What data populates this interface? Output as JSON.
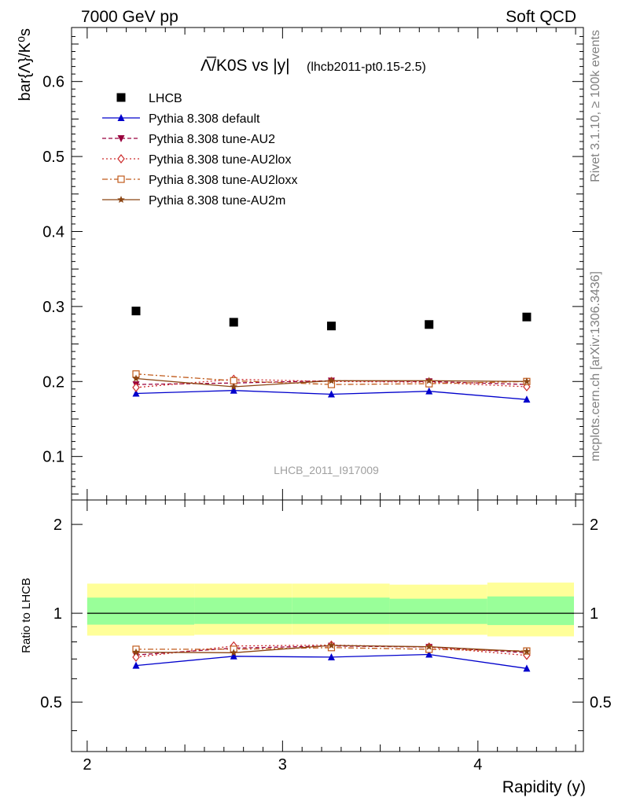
{
  "header": {
    "left": "7000 GeV pp",
    "right": "Soft QCD"
  },
  "side_labels": {
    "top": "Rivet 3.1.10, ≥ 100k events",
    "bottom": "mcplots.cern.ch [arXiv:1306.3436]"
  },
  "watermark": "LHCB_2011_I917009",
  "chart_data": [
    {
      "type": "scatter",
      "title_main": "Λ̅/K0S vs |y|",
      "title_sub": "(lhcb2011-pt0.15-2.5)",
      "ylabel": "bar{Λ}/K⁰s",
      "xlim": [
        1.92,
        4.54
      ],
      "ylim": [
        0.042,
        0.672
      ],
      "y_ticks": [
        0.1,
        0.2,
        0.3,
        0.4,
        0.5,
        0.6
      ],
      "y_tick_labels": [
        "0.1",
        "0.2",
        "0.3",
        "0.4",
        "0.5",
        "0.6"
      ],
      "x": [
        2.25,
        2.75,
        3.25,
        3.75,
        4.25
      ],
      "series": [
        {
          "name": "LHCB",
          "marker": "square",
          "color": "#000000",
          "line": "none",
          "values": [
            0.294,
            0.279,
            0.274,
            0.276,
            0.286
          ]
        },
        {
          "name": "Pythia 8.308 default",
          "marker": "triangle",
          "color": "#0000cc",
          "line": "solid",
          "values": [
            0.184,
            0.188,
            0.183,
            0.187,
            0.176
          ]
        },
        {
          "name": "Pythia 8.308 tune-AU2",
          "marker": "triangle-down",
          "color": "#99003d",
          "line": "dashed",
          "values": [
            0.196,
            0.198,
            0.201,
            0.2,
            0.196
          ]
        },
        {
          "name": "Pythia 8.308 tune-AU2lox",
          "marker": "diamond",
          "color": "#cc2a2a",
          "line": "dotted",
          "values": [
            0.192,
            0.203,
            0.2,
            0.199,
            0.193
          ]
        },
        {
          "name": "Pythia 8.308 tune-AU2loxx",
          "marker": "open-square",
          "color": "#c05a1a",
          "line": "dashdot",
          "values": [
            0.21,
            0.201,
            0.196,
            0.197,
            0.2
          ]
        },
        {
          "name": "Pythia 8.308 tune-AU2m",
          "marker": "star",
          "color": "#8b4513",
          "line": "solid",
          "values": [
            0.204,
            0.193,
            0.201,
            0.201,
            0.2
          ]
        }
      ]
    },
    {
      "type": "line",
      "xlabel": "Rapidity (y)",
      "ylabel": "Ratio to LHCB",
      "xlim": [
        1.92,
        4.54
      ],
      "ylim": [
        0.34,
        2.42
      ],
      "log_y": true,
      "x_ticks": [
        2,
        3,
        4
      ],
      "x_tick_labels": [
        "2",
        "3",
        "4"
      ],
      "y_ticks": [
        0.5,
        1,
        2
      ],
      "y_tick_labels": [
        "0.5",
        "1",
        "2"
      ],
      "x": [
        2.25,
        2.75,
        3.25,
        3.75,
        4.25
      ],
      "bin_edges": [
        2.0,
        2.5,
        3.0,
        3.5,
        4.0,
        4.5
      ],
      "band_yellow": {
        "color": "#ffff99",
        "low": [
          0.84,
          0.845,
          0.845,
          0.845,
          0.835
        ],
        "high": [
          1.26,
          1.26,
          1.26,
          1.25,
          1.27
        ]
      },
      "band_green": {
        "color": "#99ff99",
        "low": [
          0.915,
          0.92,
          0.92,
          0.92,
          0.912
        ],
        "high": [
          1.13,
          1.13,
          1.13,
          1.12,
          1.14
        ]
      },
      "series": [
        {
          "name": "Pythia 8.308 default",
          "marker": "triangle",
          "color": "#0000cc",
          "line": "solid",
          "values": [
            0.665,
            0.715,
            0.71,
            0.725,
            0.65
          ]
        },
        {
          "name": "Pythia 8.308 tune-AU2",
          "marker": "triangle-down",
          "color": "#99003d",
          "line": "dashed",
          "values": [
            0.722,
            0.762,
            0.775,
            0.768,
            0.735
          ]
        },
        {
          "name": "Pythia 8.308 tune-AU2lox",
          "marker": "diamond",
          "color": "#cc2a2a",
          "line": "dotted",
          "values": [
            0.71,
            0.775,
            0.78,
            0.768,
            0.72
          ]
        },
        {
          "name": "Pythia 8.308 tune-AU2loxx",
          "marker": "open-square",
          "color": "#c05a1a",
          "line": "dashdot",
          "values": [
            0.755,
            0.755,
            0.765,
            0.755,
            0.745
          ]
        },
        {
          "name": "Pythia 8.308 tune-AU2m",
          "marker": "star",
          "color": "#8b4513",
          "line": "solid",
          "values": [
            0.738,
            0.735,
            0.778,
            0.77,
            0.742
          ]
        }
      ]
    }
  ]
}
